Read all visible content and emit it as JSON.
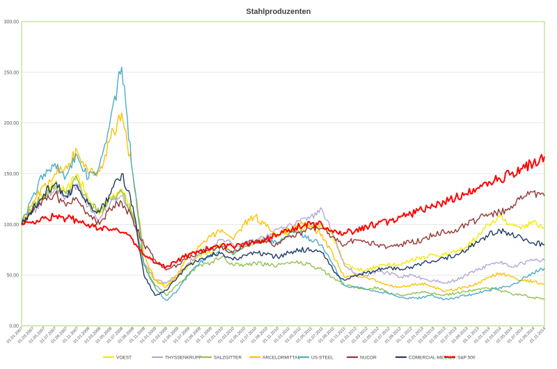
{
  "chart_data": {
    "type": "line",
    "title": "Stahlproduzenten",
    "xlabel": "",
    "ylabel": "",
    "ylim": [
      0,
      300
    ],
    "yticks": [
      "0,00",
      "50,00",
      "100,00",
      "150,00",
      "200,00",
      "250,00",
      "300,00"
    ],
    "x": [
      "01.01.2007",
      "01.03.2007",
      "01.05.2007",
      "01.07.2007",
      "01.09.2007",
      "01.11.2007",
      "01.01.2008",
      "01.03.2008",
      "01.05.2008",
      "01.07.2008",
      "01.09.2008",
      "01.11.2008",
      "01.01.2009",
      "01.03.2009",
      "01.05.2009",
      "01.07.2009",
      "01.09.2009",
      "01.11.2009",
      "01.01.2010",
      "01.03.2010",
      "01.05.2010",
      "01.07.2010",
      "01.09.2010",
      "01.11.2010",
      "01.01.2011",
      "01.03.2011",
      "01.05.2011",
      "01.07.2011",
      "01.09.2011",
      "01.11.2011",
      "01.01.2012",
      "01.03.2012",
      "01.05.2012",
      "01.07.2012",
      "01.09.2012",
      "01.11.2012",
      "01.01.2013",
      "01.03.2013",
      "01.05.2013",
      "01.07.2013",
      "01.09.2013",
      "01.11.2013",
      "01.01.2014",
      "01.03.2014",
      "01.05.2014",
      "01.07.2014",
      "01.09.2014",
      "01.11.2014"
    ],
    "grid": true,
    "legend_position": "bottom",
    "series": [
      {
        "name": "VOEST",
        "color": "#F2EA00",
        "values": [
          100,
          120,
          128,
          140,
          132,
          150,
          125,
          110,
          128,
          135,
          112,
          60,
          45,
          40,
          48,
          60,
          70,
          72,
          80,
          72,
          80,
          82,
          85,
          90,
          92,
          95,
          98,
          100,
          88,
          62,
          56,
          55,
          58,
          62,
          60,
          65,
          68,
          70,
          70,
          72,
          78,
          88,
          100,
          108,
          100,
          98,
          102,
          97
        ]
      },
      {
        "name": "THYSSENKRUPP",
        "color": "#B4A7D6",
        "values": [
          100,
          112,
          125,
          135,
          128,
          140,
          118,
          105,
          122,
          128,
          108,
          62,
          45,
          42,
          50,
          62,
          72,
          75,
          85,
          80,
          82,
          84,
          87,
          95,
          100,
          103,
          108,
          115,
          90,
          60,
          52,
          50,
          54,
          52,
          48,
          50,
          47,
          45,
          42,
          45,
          50,
          55,
          60,
          62,
          58,
          62,
          65,
          64
        ]
      },
      {
        "name": "SALZGITTER",
        "color": "#92C050",
        "values": [
          100,
          118,
          128,
          138,
          130,
          145,
          122,
          112,
          125,
          132,
          110,
          60,
          40,
          30,
          40,
          50,
          60,
          62,
          68,
          60,
          60,
          62,
          60,
          60,
          62,
          62,
          60,
          55,
          48,
          40,
          38,
          36,
          38,
          32,
          30,
          31,
          34,
          32,
          30,
          32,
          34,
          36,
          37,
          35,
          32,
          30,
          28,
          26
        ]
      },
      {
        "name": "ARCELORMITTAL",
        "color": "#FFC000",
        "values": [
          100,
          122,
          138,
          150,
          158,
          172,
          150,
          152,
          185,
          210,
          150,
          70,
          45,
          38,
          50,
          68,
          78,
          88,
          95,
          85,
          100,
          108,
          98,
          90,
          95,
          100,
          98,
          90,
          70,
          48,
          50,
          48,
          44,
          40,
          38,
          40,
          42,
          38,
          34,
          36,
          38,
          42,
          48,
          52,
          48,
          45,
          44,
          41
        ]
      },
      {
        "name": "US-STEEL",
        "color": "#4BACC6",
        "values": [
          100,
          128,
          150,
          160,
          148,
          168,
          145,
          158,
          205,
          255,
          150,
          60,
          38,
          25,
          35,
          50,
          62,
          68,
          78,
          70,
          78,
          82,
          85,
          82,
          90,
          92,
          85,
          80,
          60,
          40,
          38,
          36,
          34,
          32,
          28,
          27,
          28,
          30,
          26,
          28,
          30,
          32,
          35,
          38,
          40,
          46,
          52,
          57
        ]
      },
      {
        "name": "NUCOR",
        "color": "#943634",
        "values": [
          100,
          112,
          125,
          130,
          118,
          125,
          110,
          100,
          115,
          122,
          105,
          80,
          65,
          55,
          60,
          68,
          72,
          75,
          78,
          72,
          80,
          84,
          82,
          80,
          88,
          92,
          95,
          96,
          88,
          80,
          85,
          82,
          80,
          78,
          80,
          82,
          85,
          90,
          92,
          95,
          100,
          105,
          110,
          112,
          118,
          125,
          132,
          128
        ]
      },
      {
        "name": "COMERCIAL-METALS",
        "color": "#1F3864",
        "values": [
          100,
          115,
          130,
          140,
          128,
          138,
          120,
          112,
          130,
          150,
          118,
          50,
          30,
          35,
          48,
          60,
          66,
          70,
          72,
          65,
          70,
          72,
          70,
          68,
          72,
          75,
          75,
          72,
          55,
          45,
          50,
          52,
          55,
          58,
          55,
          58,
          62,
          64,
          66,
          70,
          75,
          82,
          90,
          94,
          90,
          86,
          82,
          80
        ]
      },
      {
        "name": "S&P 500",
        "color": "#FF0000",
        "values": [
          100,
          103,
          106,
          108,
          106,
          104,
          100,
          96,
          95,
          92,
          85,
          70,
          62,
          58,
          64,
          70,
          74,
          77,
          80,
          78,
          80,
          82,
          85,
          90,
          95,
          98,
          100,
          100,
          92,
          92,
          94,
          98,
          100,
          103,
          107,
          110,
          114,
          118,
          122,
          126,
          130,
          136,
          142,
          145,
          150,
          155,
          160,
          167
        ]
      }
    ]
  }
}
